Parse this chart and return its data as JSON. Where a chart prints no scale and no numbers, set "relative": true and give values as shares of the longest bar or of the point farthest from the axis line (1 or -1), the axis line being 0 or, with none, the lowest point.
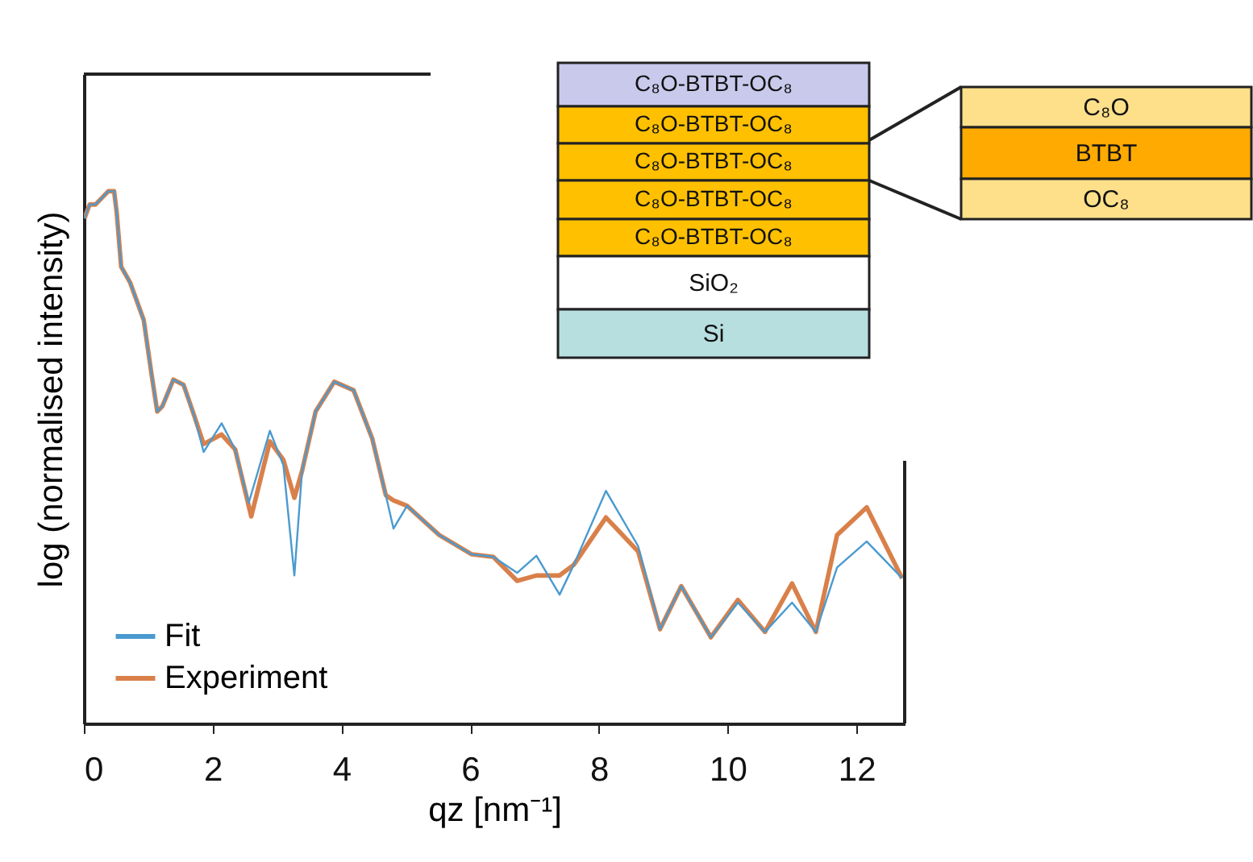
{
  "chart_data": {
    "type": "line",
    "relative": true,
    "xlabel": "qz [nm⁻¹]",
    "ylabel": "log (normalised intensity)",
    "xlim": [
      0,
      12.75
    ],
    "xticks": [
      0,
      2,
      4,
      6,
      8,
      10,
      12
    ],
    "tick_labels": "x",
    "grid": false,
    "legend": "bottom left",
    "line_style": "solid",
    "marker": "none",
    "annotations": [
      "C₈O-BTBT-OC₈",
      "C₈O-BTBT-OC₈",
      "C₈O-BTBT-OC₈",
      "C₈O-BTBT-OC₈",
      "C₈O-BTBT-OC₈",
      "SiO₂",
      "Si",
      "C₈O",
      "BTBT",
      "OC₈"
    ],
    "series": [
      {
        "name": "Fit",
        "color": "#4a9ad0",
        "x": [
          0.01,
          0.09,
          0.18,
          0.38,
          0.47,
          0.51,
          0.58,
          0.72,
          0.93,
          1.05,
          1.14,
          1.22,
          1.39,
          1.55,
          1.72,
          1.86,
          2.14,
          2.35,
          2.56,
          2.89,
          3.1,
          3.27,
          3.39,
          3.6,
          3.89,
          4.19,
          4.48,
          4.69,
          4.81,
          5.02,
          5.52,
          6.02,
          6.36,
          6.73,
          7.03,
          7.39,
          7.61,
          8.11,
          8.61,
          8.95,
          9.28,
          9.74,
          10.16,
          10.58,
          11.0,
          11.37,
          11.7,
          12.16,
          12.71
        ],
        "values": [
          0.949,
          0.975,
          0.975,
          1,
          1,
          0.96,
          0.858,
          0.828,
          0.758,
          0.657,
          0.586,
          0.596,
          0.646,
          0.636,
          0.576,
          0.51,
          0.564,
          0.515,
          0.414,
          0.55,
          0.485,
          0.278,
          0.475,
          0.586,
          0.642,
          0.626,
          0.535,
          0.429,
          0.366,
          0.409,
          0.354,
          0.318,
          0.313,
          0.283,
          0.315,
          0.242,
          0.298,
          0.437,
          0.333,
          0.177,
          0.258,
          0.162,
          0.227,
          0.172,
          0.227,
          0.172,
          0.293,
          0.342,
          0.273
        ]
      },
      {
        "name": "Experiment",
        "color": "#d9804a",
        "x": [
          0.01,
          0.09,
          0.18,
          0.38,
          0.47,
          0.51,
          0.58,
          0.72,
          0.93,
          1.05,
          1.14,
          1.22,
          1.39,
          1.55,
          1.72,
          1.86,
          2.14,
          2.35,
          2.6,
          2.89,
          3.1,
          3.27,
          3.39,
          3.6,
          3.89,
          4.19,
          4.48,
          4.69,
          4.81,
          5.02,
          5.52,
          6.02,
          6.36,
          6.73,
          7.03,
          7.39,
          7.61,
          8.11,
          8.61,
          8.95,
          9.28,
          9.74,
          10.16,
          10.58,
          11.0,
          11.37,
          11.7,
          12.16,
          12.71
        ],
        "values": [
          0.949,
          0.975,
          0.975,
          1,
          1,
          0.96,
          0.858,
          0.828,
          0.758,
          0.657,
          0.586,
          0.596,
          0.646,
          0.636,
          0.576,
          0.525,
          0.543,
          0.515,
          0.389,
          0.53,
          0.495,
          0.424,
          0.475,
          0.586,
          0.642,
          0.626,
          0.535,
          0.429,
          0.419,
          0.409,
          0.354,
          0.318,
          0.313,
          0.268,
          0.278,
          0.278,
          0.298,
          0.387,
          0.323,
          0.177,
          0.258,
          0.162,
          0.232,
          0.172,
          0.263,
          0.172,
          0.354,
          0.406,
          0.273
        ]
      }
    ]
  }
}
